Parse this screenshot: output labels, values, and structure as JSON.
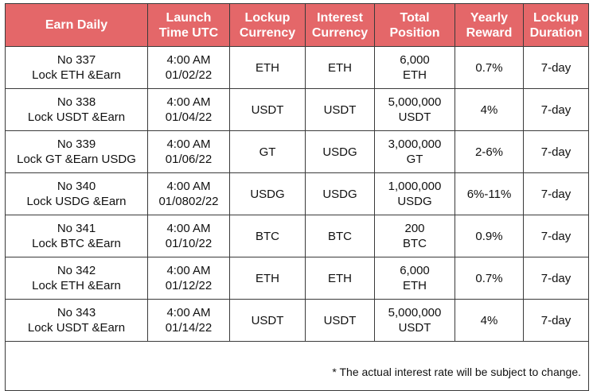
{
  "columns": [
    {
      "line1": "Earn Daily",
      "line2": ""
    },
    {
      "line1": "Launch",
      "line2": "Time UTC"
    },
    {
      "line1": "Lockup",
      "line2": "Currency"
    },
    {
      "line1": "Interest",
      "line2": "Currency"
    },
    {
      "line1": "Total",
      "line2": "Position"
    },
    {
      "line1": "Yearly",
      "line2": "Reward"
    },
    {
      "line1": "Lockup",
      "line2": "Duration"
    }
  ],
  "rows": [
    {
      "product_no": "No 337",
      "product_name": "Lock ETH &Earn",
      "launch_time": "4:00 AM",
      "launch_date": "01/02/22",
      "lockup_currency": "ETH",
      "interest_currency": "ETH",
      "position_amount": "6,000",
      "position_currency": "ETH",
      "yearly_reward": "0.7%",
      "duration": "7-day"
    },
    {
      "product_no": "No 338",
      "product_name": "Lock USDT &Earn",
      "launch_time": "4:00 AM",
      "launch_date": "01/04/22",
      "lockup_currency": "USDT",
      "interest_currency": "USDT",
      "position_amount": "5,000,000",
      "position_currency": "USDT",
      "yearly_reward": "4%",
      "duration": "7-day"
    },
    {
      "product_no": "No 339",
      "product_name": "Lock GT &Earn USDG",
      "launch_time": "4:00 AM",
      "launch_date": "01/06/22",
      "lockup_currency": "GT",
      "interest_currency": "USDG",
      "position_amount": "3,000,000",
      "position_currency": "GT",
      "yearly_reward": "2-6%",
      "duration": "7-day"
    },
    {
      "product_no": "No 340",
      "product_name": "Lock USDG &Earn",
      "launch_time": "4:00 AM",
      "launch_date": "01/0802/22",
      "lockup_currency": "USDG",
      "interest_currency": "USDG",
      "position_amount": "1,000,000",
      "position_currency": "USDG",
      "yearly_reward": "6%-11%",
      "duration": "7-day"
    },
    {
      "product_no": "No 341",
      "product_name": "Lock BTC &Earn",
      "launch_time": "4:00 AM",
      "launch_date": "01/10/22",
      "lockup_currency": "BTC",
      "interest_currency": "BTC",
      "position_amount": "200",
      "position_currency": "BTC",
      "yearly_reward": "0.9%",
      "duration": "7-day"
    },
    {
      "product_no": "No 342",
      "product_name": "Lock ETH &Earn",
      "launch_time": "4:00 AM",
      "launch_date": "01/12/22",
      "lockup_currency": "ETH",
      "interest_currency": "ETH",
      "position_amount": "6,000",
      "position_currency": "ETH",
      "yearly_reward": "0.7%",
      "duration": "7-day"
    },
    {
      "product_no": "No 343",
      "product_name": "Lock USDT &Earn",
      "launch_time": "4:00 AM",
      "launch_date": "01/14/22",
      "lockup_currency": "USDT",
      "interest_currency": "USDT",
      "position_amount": "5,000,000",
      "position_currency": "USDT",
      "yearly_reward": "4%",
      "duration": "7-day"
    }
  ],
  "footnote": "* The actual interest rate will be subject to change.",
  "colors": {
    "header_background": "#e46769",
    "header_text": "#ffffff",
    "border": "#3a3a3a",
    "body_text": "#111111"
  }
}
